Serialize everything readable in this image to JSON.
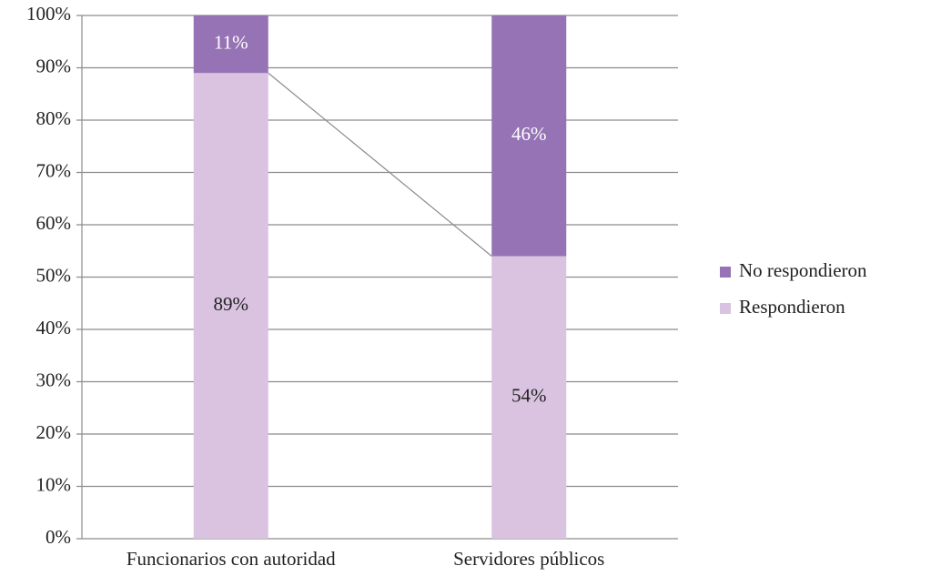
{
  "chart_data": {
    "type": "stacked_bar",
    "categories": [
      "Funcionarios con autoridad",
      "Servidores públicos"
    ],
    "series": [
      {
        "name": "Respondieron",
        "color": "#d9c3e0",
        "values": [
          89,
          54
        ],
        "value_labels": [
          "89%",
          "54%"
        ]
      },
      {
        "name": "No respondieron",
        "color": "#9673b4",
        "values": [
          11,
          46
        ],
        "value_labels": [
          "11%",
          "46%"
        ]
      }
    ],
    "ylim": [
      0,
      100
    ],
    "yticks": [
      {
        "value": 0,
        "label": "0%"
      },
      {
        "value": 10,
        "label": "10%"
      },
      {
        "value": 20,
        "label": "20%"
      },
      {
        "value": 30,
        "label": "30%"
      },
      {
        "value": 40,
        "label": "40%"
      },
      {
        "value": 50,
        "label": "50%"
      },
      {
        "value": 60,
        "label": "60%"
      },
      {
        "value": 70,
        "label": "70%"
      },
      {
        "value": 80,
        "label": "80%"
      },
      {
        "value": 90,
        "label": "90%"
      },
      {
        "value": 100,
        "label": "100%"
      }
    ],
    "grid": true,
    "legend": "right"
  }
}
